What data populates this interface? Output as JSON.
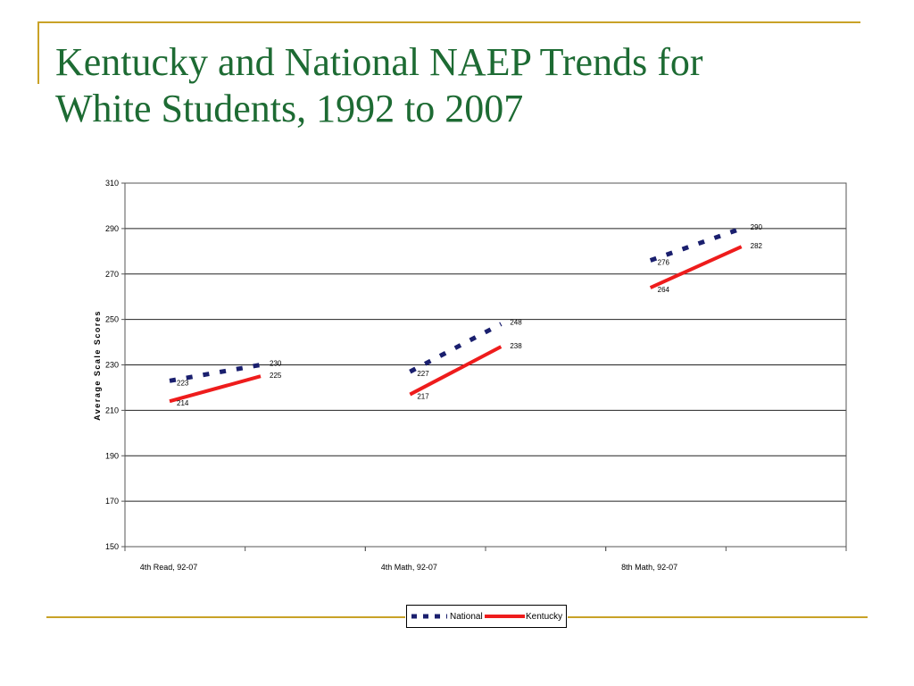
{
  "slide": {
    "title_line1": "Kentucky and National NAEP Trends for",
    "title_line2": "White Students, 1992 to 2007"
  },
  "colors": {
    "title": "#1d6b33",
    "accent_rule": "#c9a227",
    "national": "#1a1f6e",
    "kentucky": "#ee1c1c"
  },
  "chart_data": {
    "type": "line",
    "title": "",
    "ylabel": "Average Scale Scores",
    "ylim": [
      150,
      310
    ],
    "yticks": [
      150,
      170,
      190,
      210,
      230,
      250,
      270,
      290,
      310
    ],
    "grid": true,
    "legend_position": "bottom",
    "categories": [
      "4th Read, 92-07",
      "4th Math, 92-07",
      "8th Math, 92-07"
    ],
    "series": [
      {
        "name": "National",
        "style": "dashed",
        "segments": [
          {
            "category": "4th Read, 92-07",
            "start": 223,
            "end": 230
          },
          {
            "category": "4th Math, 92-07",
            "start": 227,
            "end": 248
          },
          {
            "category": "8th Math, 92-07",
            "start": 276,
            "end": 290
          }
        ]
      },
      {
        "name": "Kentucky",
        "style": "solid",
        "segments": [
          {
            "category": "4th Read, 92-07",
            "start": 214,
            "end": 225
          },
          {
            "category": "4th Math, 92-07",
            "start": 217,
            "end": 238
          },
          {
            "category": "8th Math, 92-07",
            "start": 264,
            "end": 282
          }
        ]
      }
    ]
  }
}
